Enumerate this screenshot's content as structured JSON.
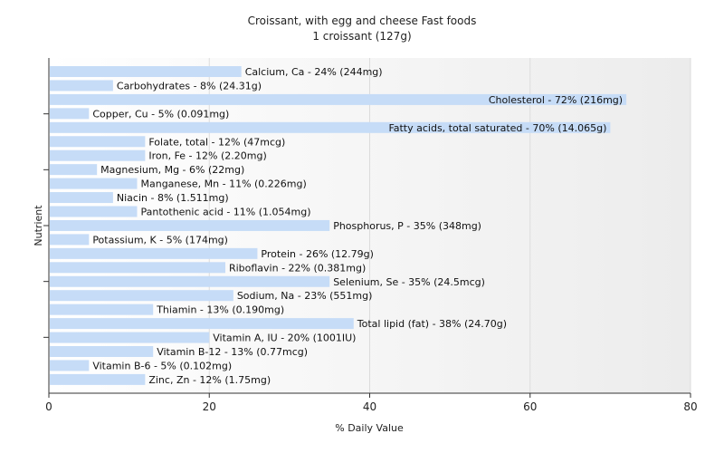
{
  "chart_data": {
    "type": "bar",
    "orientation": "horizontal",
    "title": "Croissant, with egg and cheese Fast foods",
    "subtitle": "1 croissant (127g)",
    "xlabel": "% Daily Value",
    "ylabel": "Nutrient",
    "xlim": [
      0,
      80
    ],
    "xticks": [
      0,
      20,
      40,
      60,
      80
    ],
    "grid": true,
    "bar_color": "#c6dcf7",
    "categories": [
      "Calcium, Ca",
      "Carbohydrates",
      "Cholesterol",
      "Copper, Cu",
      "Fatty acids, total saturated",
      "Folate, total",
      "Iron, Fe",
      "Magnesium, Mg",
      "Manganese, Mn",
      "Niacin",
      "Pantothenic acid",
      "Phosphorus, P",
      "Potassium, K",
      "Protein",
      "Riboflavin",
      "Selenium, Se",
      "Sodium, Na",
      "Thiamin",
      "Total lipid (fat)",
      "Vitamin A, IU",
      "Vitamin B-12",
      "Vitamin B-6",
      "Zinc, Zn"
    ],
    "values": [
      24,
      8,
      72,
      5,
      70,
      12,
      12,
      6,
      11,
      8,
      11,
      35,
      5,
      26,
      22,
      35,
      23,
      13,
      38,
      20,
      13,
      5,
      12
    ],
    "labels": [
      "Calcium, Ca - 24% (244mg)",
      "Carbohydrates - 8% (24.31g)",
      "Cholesterol - 72% (216mg)",
      "Copper, Cu - 5% (0.091mg)",
      "Fatty acids, total saturated - 70% (14.065g)",
      "Folate, total - 12% (47mcg)",
      "Iron, Fe - 12% (2.20mg)",
      "Magnesium, Mg - 6% (22mg)",
      "Manganese, Mn - 11% (0.226mg)",
      "Niacin - 8% (1.511mg)",
      "Pantothenic acid - 11% (1.054mg)",
      "Phosphorus, P - 35% (348mg)",
      "Potassium, K - 5% (174mg)",
      "Protein - 26% (12.79g)",
      "Riboflavin - 22% (0.381mg)",
      "Selenium, Se - 35% (24.5mcg)",
      "Sodium, Na - 23% (551mg)",
      "Thiamin - 13% (0.190mg)",
      "Total lipid (fat) - 38% (24.70g)",
      "Vitamin A, IU - 20% (1001IU)",
      "Vitamin B-12 - 13% (0.77mcg)",
      "Vitamin B-6 - 5% (0.102mg)",
      "Zinc, Zn - 12% (1.75mg)"
    ]
  }
}
